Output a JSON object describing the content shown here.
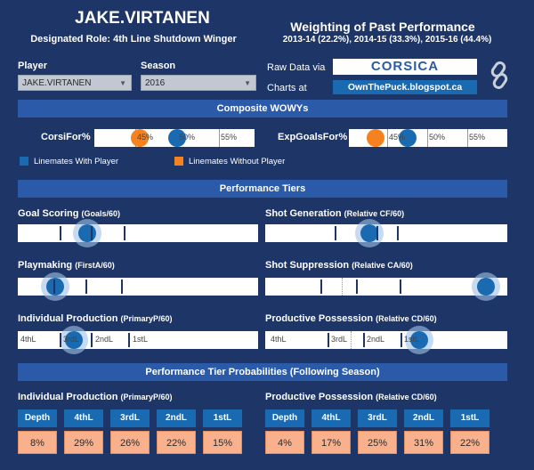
{
  "header": {
    "player_name": "JAKE.VIRTANEN",
    "role": "Designated Role: 4th Line Shutdown Winger",
    "weighting_title": "Weighting of Past Performance",
    "weighting_sub": "2013-14 (22.2%), 2014-15 (33.3%), 2015-16 (44.4%)"
  },
  "filters": {
    "player_label": "Player",
    "player_value": "JAKE.VIRTANEN",
    "season_label": "Season",
    "season_value": "2016"
  },
  "links": {
    "raw_data_label": "Raw Data via",
    "corsica": "CORSICA",
    "charts_label": "Charts at",
    "otp": "OwnThePuck.blogspot.ca"
  },
  "colors": {
    "with_player": "#1a6ab2",
    "without_player": "#f5821f",
    "background": "#1d3567"
  },
  "icons": {
    "share": "link-chain-icon"
  },
  "sections": {
    "wowy": "Composite WOWYs",
    "tiers": "Performance Tiers",
    "probs": "Performance Tier Probabilities (Following Season)"
  },
  "wowy": {
    "corsi": {
      "label": "CorsiFor%",
      "ticks": [
        "45%",
        "50%",
        "55%"
      ],
      "with_player": 50.0,
      "without_player": 45.5
    },
    "xg": {
      "label": "ExpGoalsFor%",
      "ticks": [
        "45%",
        "50%",
        "55%"
      ],
      "with_player": 47.5,
      "without_player": 43.5
    },
    "legend_with": "Linemates With Player",
    "legend_without": "Linemates Without Player"
  },
  "tiers": {
    "goal_scoring": {
      "label": "Goal Scoring",
      "metric": "(Goals/60)",
      "value_position": 0.29
    },
    "shot_generation": {
      "label": "Shot Generation",
      "metric": "(Relative CF/60)",
      "value_position": 0.43
    },
    "playmaking": {
      "label": "Playmaking",
      "metric": "(FirstA/60)",
      "value_position": 0.155
    },
    "shot_suppression": {
      "label": "Shot Suppression",
      "metric": "(Relative CA/60)",
      "value_position": 0.91
    },
    "individual_production": {
      "label": "Individual Production",
      "metric": "(PrimaryP/60)",
      "value_position": 0.235,
      "tier_labels": [
        "4thL",
        "3rdL",
        "2ndL",
        "1stL"
      ]
    },
    "productive_possession": {
      "label": "Productive Possession",
      "metric": "(Relative CD/60)",
      "value_position": 0.635,
      "tier_labels": [
        "4thL",
        "3rdL",
        "2ndL",
        "1stL"
      ]
    }
  },
  "probabilities": {
    "individual_production": {
      "label": "Individual Production",
      "metric": "(PrimaryP/60)",
      "headers": [
        "Depth",
        "4thL",
        "3rdL",
        "2ndL",
        "1stL"
      ],
      "values": [
        "8%",
        "29%",
        "26%",
        "22%",
        "15%"
      ]
    },
    "productive_possession": {
      "label": "Productive Possession",
      "metric": "(Relative CD/60)",
      "headers": [
        "Depth",
        "4thL",
        "3rdL",
        "2ndL",
        "1stL"
      ],
      "values": [
        "4%",
        "17%",
        "25%",
        "31%",
        "22%"
      ]
    }
  }
}
